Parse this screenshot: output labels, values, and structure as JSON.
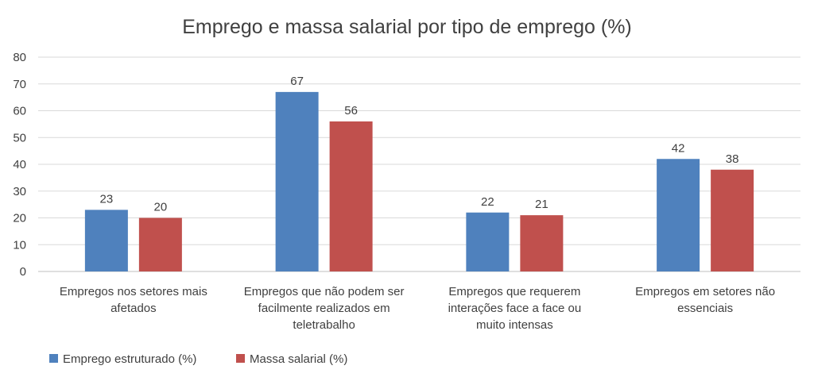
{
  "chart_data": {
    "type": "bar",
    "title": "Emprego e massa salarial por tipo de emprego (%)",
    "xlabel": "",
    "ylabel": "",
    "ylim": [
      0,
      80
    ],
    "yticks": [
      0,
      10,
      20,
      30,
      40,
      50,
      60,
      70,
      80
    ],
    "grid": true,
    "legend_position": "bottom-left",
    "categories": [
      [
        "Empregos nos setores mais",
        "afetados"
      ],
      [
        "Empregos que não podem ser",
        "facilmente realizados em",
        "teletrabalho"
      ],
      [
        "Empregos que requerem",
        "interações face a face ou",
        "muito intensas"
      ],
      [
        "Empregos em setores não",
        "essenciais"
      ]
    ],
    "series": [
      {
        "name": "Emprego estruturado (%)",
        "color": "#4f81bd",
        "values": [
          23,
          67,
          22,
          42
        ]
      },
      {
        "name": "Massa salarial (%)",
        "color": "#c0504d",
        "values": [
          20,
          56,
          21,
          38
        ]
      }
    ]
  }
}
